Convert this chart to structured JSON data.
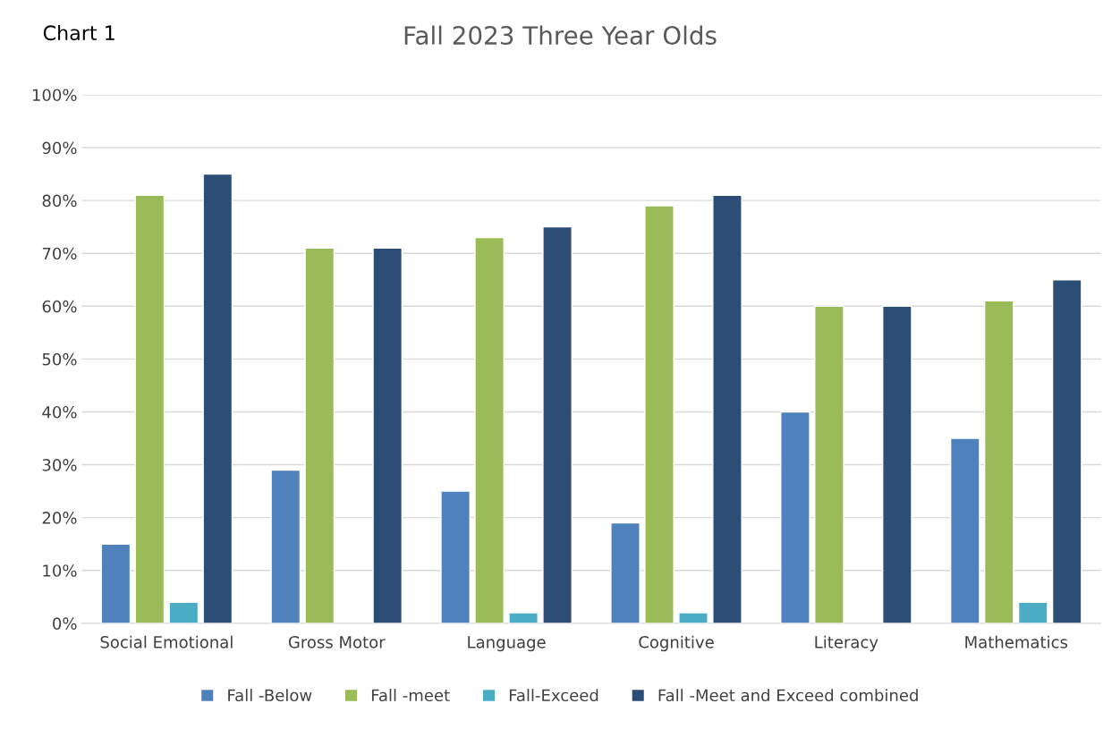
{
  "chart_data": {
    "type": "bar",
    "title": "Fall 2023 Three Year Olds",
    "annotations": [
      "Chart 1"
    ],
    "categories": [
      "Social Emotional",
      "Gross Motor",
      "Language",
      "Cognitive",
      "Literacy",
      "Mathematics"
    ],
    "series": [
      {
        "name": "Fall -Below",
        "color": "#4f81bd",
        "values": [
          15,
          29,
          25,
          19,
          40,
          35
        ]
      },
      {
        "name": "Fall -meet",
        "color": "#9bbb59",
        "values": [
          81,
          71,
          73,
          79,
          60,
          61
        ]
      },
      {
        "name": "Fall-Exceed",
        "color": "#4bacc6",
        "values": [
          4,
          null,
          2,
          2,
          null,
          4
        ]
      },
      {
        "name": "Fall -Meet and Exceed combined",
        "color": "#2c4d75",
        "values": [
          85,
          71,
          75,
          81,
          60,
          65
        ]
      }
    ],
    "ylim": [
      0,
      100
    ],
    "yticks": [
      {
        "value": 0,
        "label": "0%"
      },
      {
        "value": 10,
        "label": "10%"
      },
      {
        "value": 20,
        "label": "20%"
      },
      {
        "value": 30,
        "label": "30%"
      },
      {
        "value": 40,
        "label": "40%"
      },
      {
        "value": 50,
        "label": "50%"
      },
      {
        "value": 60,
        "label": "60%"
      },
      {
        "value": 70,
        "label": "70%"
      },
      {
        "value": 80,
        "label": "80%"
      },
      {
        "value": 90,
        "label": "90%"
      },
      {
        "value": 100,
        "label": "100%"
      }
    ],
    "grid": "y",
    "legend": "bottom"
  }
}
